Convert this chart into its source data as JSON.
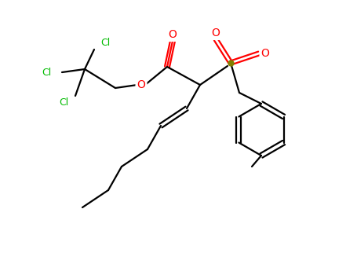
{
  "background_color": "#ffffff",
  "bond_color": "#000000",
  "atom_colors": {
    "O": "#ff0000",
    "Cl": "#00bb00",
    "S": "#808000",
    "C": "#000000"
  },
  "figsize": [
    4.55,
    3.5
  ],
  "dpi": 100,
  "lw": 1.6,
  "fs": 10
}
